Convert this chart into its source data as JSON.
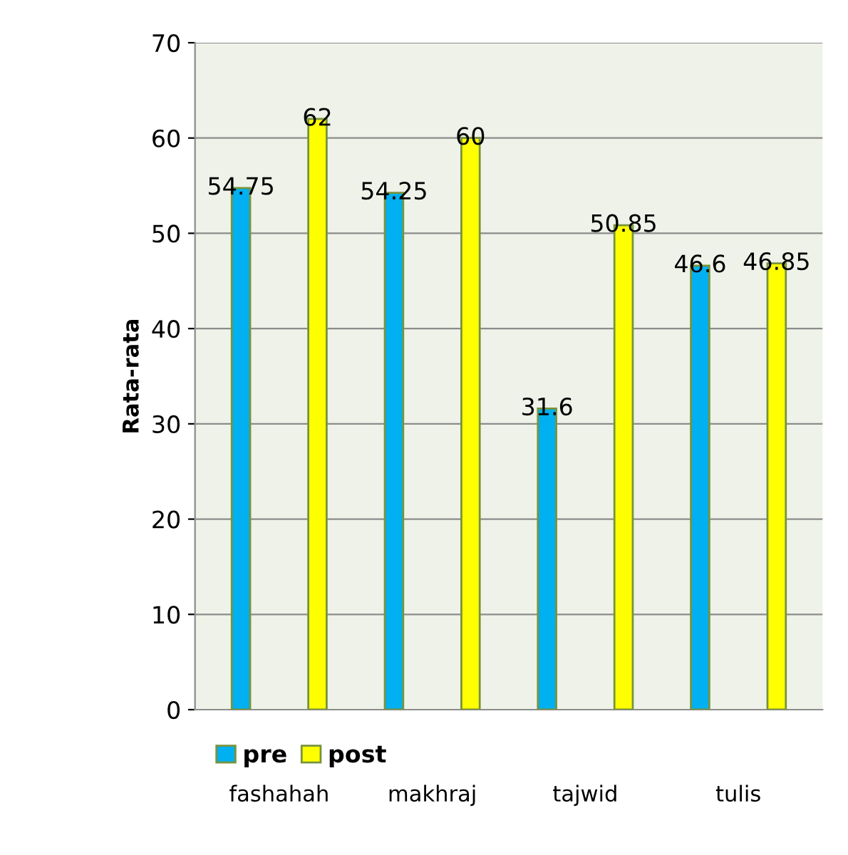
{
  "chart_data": {
    "type": "bar",
    "ylabel": "Rata-rata",
    "categories": [
      "fashahah",
      "makhraj",
      "tajwid",
      "tulis"
    ],
    "series": [
      {
        "name": "pre",
        "color": "#00b0f0",
        "values": [
          54.75,
          54.25,
          31.6,
          46.6
        ]
      },
      {
        "name": "post",
        "color": "#ffff00",
        "values": [
          62,
          60,
          50.85,
          46.85
        ]
      }
    ],
    "ylim": [
      0,
      70
    ],
    "yticks": [
      0,
      10,
      20,
      30,
      40,
      50,
      60,
      70
    ],
    "grid": "y",
    "legend": "bottom left",
    "data_labels": true
  }
}
